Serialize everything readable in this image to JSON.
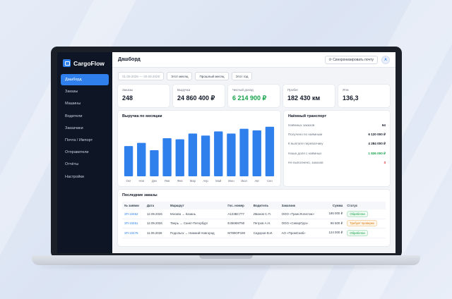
{
  "app": {
    "name": "CargoFlow"
  },
  "sidebar": {
    "items": [
      {
        "label": "Дашборд",
        "active": true
      },
      {
        "label": "Заказы"
      },
      {
        "label": "Машины"
      },
      {
        "label": "Водители"
      },
      {
        "label": "Заказчики"
      },
      {
        "label": "Почта / Импорт"
      },
      {
        "label": "Отправители"
      },
      {
        "label": "Отчёты"
      },
      {
        "label": "Настройки"
      }
    ]
  },
  "header": {
    "title": "Дашборд",
    "sync_label": "Синхронизировать почту",
    "avatar": "А"
  },
  "filters": {
    "date_range": "01.09.2026 — 30.09.2026",
    "this_month": "Этот месяц",
    "last_month": "Прошлый месяц",
    "this_year": "Этот год"
  },
  "kpis": [
    {
      "label": "Заказы",
      "value": "248"
    },
    {
      "label": "Выручка",
      "value": "24 860 400 ₽"
    },
    {
      "label": "Чистый доход",
      "value": "6 214 900 ₽"
    },
    {
      "label": "Пробег",
      "value": "182 430 км"
    },
    {
      "label": "Ятм",
      "value": "136,3"
    }
  ],
  "chart_data": {
    "type": "bar",
    "title": "Выручка по месяцам",
    "categories": [
      "Окт",
      "Ноя",
      "Дек",
      "Янв",
      "Фев",
      "Мар",
      "Апр",
      "Май",
      "Июн",
      "Июл",
      "Авг",
      "Сен"
    ],
    "values": [
      58,
      64,
      50,
      73,
      71,
      82,
      78,
      86,
      82,
      91,
      88,
      95
    ],
    "ylim": [
      0,
      100
    ],
    "color": "#2f80ed"
  },
  "transport": {
    "title": "Наёмный транспорт",
    "rows": [
      {
        "label": "Наёмных заказов",
        "value": "64"
      },
      {
        "label": "Получено по наёмным",
        "value": "6 120 000 ₽"
      },
      {
        "label": "К выплате перевозчику",
        "value": "4 284 000 ₽"
      },
      {
        "label": "Наша доля с наёмных",
        "value": "1 836 000 ₽"
      },
      {
        "label": "Не выполнено, заказов",
        "value": "3"
      }
    ]
  },
  "orders": {
    "title": "Последние заказы",
    "columns": [
      "№ заявки",
      "Дата",
      "Маршрут",
      "Гос. номер",
      "Водитель",
      "Заказчик",
      "Сумма",
      "Статус"
    ],
    "rows": [
      {
        "num": "ЗП-10462",
        "date": "12.09.2026",
        "route": "Москва → Казань",
        "plate": "А123ВС777",
        "driver": "Иванов С.П.",
        "client": "ООО «ТрансЛогистик»",
        "sum": "185 000 ₽",
        "status": "Обработан"
      },
      {
        "num": "ЗП-10461",
        "date": "12.09.2026",
        "route": "Тверь → Санкт-Петербург",
        "plate": "Е456КМ750",
        "driver": "Петров А.Н.",
        "client": "ООО «СеверГруз»",
        "sum": "96 500 ₽",
        "status": "Требует проверки"
      },
      {
        "num": "ЗП-10479",
        "date": "11.09.2026",
        "route": "Подольск → Нижний Новгород",
        "plate": "М789ОР190",
        "driver": "Сидоров В.И.",
        "client": "АО «ПромСнаб»",
        "sum": "124 000 ₽",
        "status": "Обработан"
      }
    ]
  }
}
